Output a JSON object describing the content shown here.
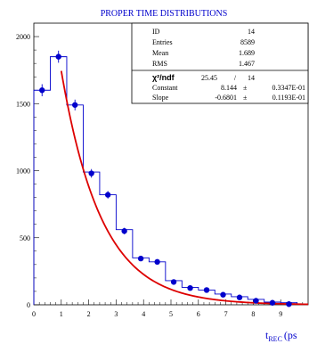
{
  "chart_data": {
    "type": "histogram_fit",
    "title": "PROPER TIME DISTRIBUTIONS",
    "xlabel_main": "t",
    "xlabel_sub": "REC",
    "xlabel_unit": "(ps",
    "xlim": [
      0,
      10
    ],
    "ylim": [
      0,
      2100
    ],
    "x_ticks": [
      "0",
      "1",
      "2",
      "3",
      "4",
      "5",
      "6",
      "7",
      "8",
      "9"
    ],
    "y_ticks": [
      "0",
      "500",
      "1000",
      "1500",
      "2000"
    ],
    "histogram_bins": {
      "edges": [
        0.0,
        0.6,
        1.2,
        1.8,
        2.4,
        3.0,
        3.6,
        4.2,
        4.8,
        5.4,
        6.0,
        6.6,
        7.2,
        7.8,
        8.4,
        9.0,
        9.6
      ],
      "counts": [
        1600,
        1850,
        1490,
        990,
        820,
        560,
        350,
        320,
        180,
        130,
        110,
        80,
        60,
        40,
        20,
        15
      ]
    },
    "points": {
      "x": [
        0.3,
        0.9,
        1.5,
        2.1,
        2.7,
        3.3,
        3.9,
        4.5,
        5.1,
        5.7,
        6.3,
        6.9,
        7.5,
        8.1,
        8.7,
        9.3
      ],
      "y": [
        1600,
        1850,
        1490,
        980,
        820,
        550,
        345,
        320,
        170,
        125,
        110,
        75,
        55,
        30,
        15,
        5
      ],
      "yerr": [
        45,
        45,
        40,
        32,
        28,
        24,
        19,
        18,
        13,
        11,
        10,
        9,
        7,
        5,
        4,
        2
      ]
    },
    "fit": {
      "constant": 8.144,
      "slope": -0.6801,
      "x_start": 1.0,
      "x_end": 10.0
    },
    "stats": {
      "rows": [
        {
          "label": "ID",
          "value": "14",
          "err": ""
        },
        {
          "label": "Entries",
          "value": "8589",
          "err": ""
        },
        {
          "label": "Mean",
          "value": "1.689",
          "err": ""
        },
        {
          "label": "RMS",
          "value": "1.467",
          "err": ""
        }
      ],
      "chi2_label": "χ²/ndf",
      "chi2_value": "25.45",
      "chi2_sep": "/",
      "ndf_value": "14",
      "fit_rows": [
        {
          "label": "Constant",
          "value": "8.144",
          "pm": "±",
          "err": "0.3347E-01"
        },
        {
          "label": "Slope",
          "value": "-0.6801",
          "pm": "±",
          "err": "0.1193E-01"
        }
      ]
    },
    "colors": {
      "histogram": "#0000cc",
      "points": "#0000cc",
      "fit": "#dd0000",
      "title": "#0000cc"
    }
  }
}
